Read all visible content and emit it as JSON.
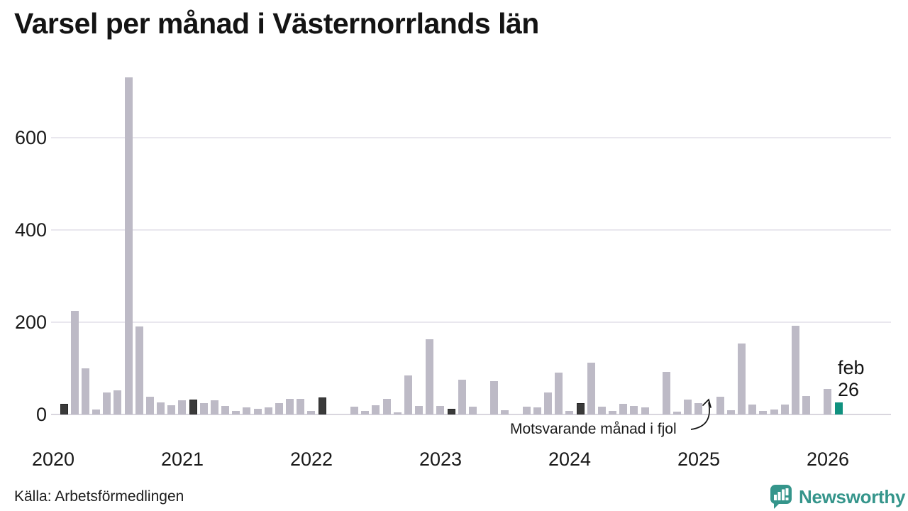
{
  "title": "Varsel per månad i Västernorrlands län",
  "source": "Källa: Arbetsförmedlingen",
  "branding": {
    "name": "Newsworthy",
    "color": "#35958b"
  },
  "annotation": {
    "text": "Motsvarande månad i fjol",
    "points_to": "feb 2025"
  },
  "end_label": {
    "line1": "feb",
    "line2": "26"
  },
  "colors": {
    "bar_default": "#bdbac6",
    "bar_same_month_previous_years": "#3a3a3a",
    "bar_latest": "#10917f",
    "gridline": "#e9e7ee",
    "baseline": "#d9d6de",
    "text": "#191919"
  },
  "chart_data": {
    "type": "bar",
    "title": "Varsel per månad i Västernorrlands län",
    "xlabel": "",
    "ylabel": "",
    "ylim": [
      0,
      760
    ],
    "yticks": [
      0,
      200,
      400,
      600
    ],
    "year_ticks": [
      "2020",
      "2021",
      "2022",
      "2023",
      "2024",
      "2025",
      "2026"
    ],
    "grid": "horizontal",
    "legend": "none",
    "highlight_rule": "february bars dark; feb 2026 teal (latest month)",
    "categories": [
      "feb 2020",
      "mar 2020",
      "apr 2020",
      "maj 2020",
      "jun 2020",
      "jul 2020",
      "aug 2020",
      "sep 2020",
      "okt 2020",
      "nov 2020",
      "dec 2020",
      "jan 2021",
      "feb 2021",
      "mar 2021",
      "apr 2021",
      "maj 2021",
      "jun 2021",
      "jul 2021",
      "aug 2021",
      "sep 2021",
      "okt 2021",
      "nov 2021",
      "dec 2021",
      "jan 2022",
      "feb 2022",
      "mar 2022",
      "apr 2022",
      "maj 2022",
      "jun 2022",
      "jul 2022",
      "aug 2022",
      "sep 2022",
      "okt 2022",
      "nov 2022",
      "dec 2022",
      "jan 2023",
      "feb 2023",
      "mar 2023",
      "apr 2023",
      "maj 2023",
      "jun 2023",
      "jul 2023",
      "aug 2023",
      "sep 2023",
      "okt 2023",
      "nov 2023",
      "dec 2023",
      "jan 2024",
      "feb 2024",
      "mar 2024",
      "apr 2024",
      "maj 2024",
      "jun 2024",
      "jul 2024",
      "aug 2024",
      "sep 2024",
      "okt 2024",
      "nov 2024",
      "dec 2024",
      "jan 2025",
      "feb 2025",
      "mar 2025",
      "apr 2025",
      "maj 2025",
      "jun 2025",
      "jul 2025",
      "aug 2025",
      "sep 2025",
      "okt 2025",
      "nov 2025",
      "dec 2025",
      "jan 2026",
      "feb 2026"
    ],
    "values": [
      23,
      225,
      100,
      10,
      47,
      52,
      730,
      190,
      38,
      26,
      20,
      30,
      33,
      24,
      31,
      19,
      8,
      15,
      13,
      15,
      24,
      34,
      34,
      8,
      37,
      0,
      0,
      17,
      8,
      20,
      34,
      5,
      85,
      18,
      163,
      19,
      12,
      75,
      17,
      0,
      72,
      9,
      0,
      17,
      15,
      48,
      90,
      8,
      25,
      112,
      17,
      7,
      23,
      19,
      15,
      0,
      92,
      6,
      32,
      24,
      0,
      38,
      9,
      154,
      21,
      8,
      11,
      21,
      193,
      40,
      0,
      56,
      26
    ]
  }
}
